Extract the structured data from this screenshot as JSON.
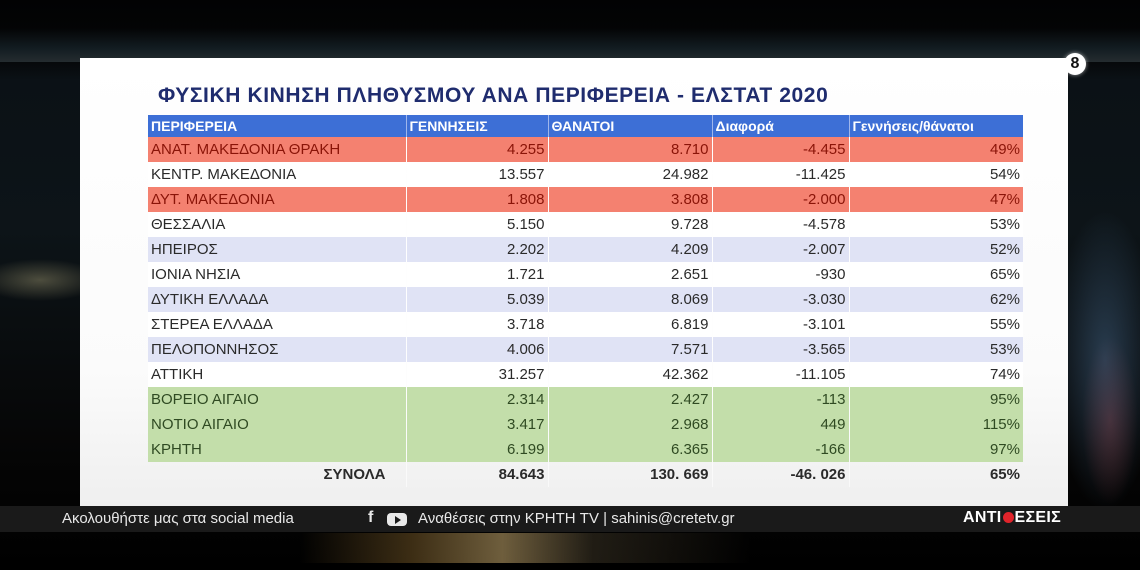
{
  "broadcast": {
    "channel_logo": "8",
    "ticker": {
      "follow_text": "Ακολουθήστε μας στα social media",
      "social_icons": [
        "facebook-icon",
        "youtube-icon"
      ],
      "facebook_glyph": "f",
      "info_text": "Αναθέσεις στην ΚΡΗΤΗ TV | sahinis@cretetv.gr",
      "show_name_part1": "ΑΝΤΙ",
      "show_name_part2": "ΕΣΕΙΣ"
    }
  },
  "slide": {
    "title": "ΦΥΣΙΚΗ ΚΙΝΗΣΗ ΠΛΗΘΥΣΜΟΥ ΑΝΑ ΠΕΡΙΦΕΡΕΙΑ - ΕΛΣΤΑΤ 2020",
    "colors": {
      "header": "#3d6fd6",
      "red_rows": "#f48170",
      "lavender_rows": "#e0e3f5",
      "green_rows": "#c3deaa",
      "title": "#1f2c6e"
    },
    "table": {
      "headers": [
        "ΠΕΡΙΦΕΡΕΙΑ",
        "ΓΕΝΝΗΣΕΙΣ",
        "ΘΑΝΑΤΟΙ",
        "Διαφορά",
        "Γεννήσεις/θάνατοι"
      ],
      "rows": [
        {
          "region": "ΑΝΑΤ. ΜΑΚΕΔΟΝΙΑ ΘΡΑΚΗ",
          "births": "4.255",
          "deaths": "8.710",
          "diff": "-4.455",
          "ratio": "49%",
          "band": "red"
        },
        {
          "region": "ΚΕΝΤΡ. ΜΑΚΕΔΟΝΙΑ",
          "births": "13.557",
          "deaths": "24.982",
          "diff": "-11.425",
          "ratio": "54%",
          "band": "white"
        },
        {
          "region": "ΔΥΤ. ΜΑΚΕΔΟΝΙΑ",
          "births": "1.808",
          "deaths": "3.808",
          "diff": "-2.000",
          "ratio": "47%",
          "band": "red"
        },
        {
          "region": "ΘΕΣΣΑΛΙΑ",
          "births": "5.150",
          "deaths": "9.728",
          "diff": "-4.578",
          "ratio": "53%",
          "band": "white"
        },
        {
          "region": "ΗΠΕΙΡΟΣ",
          "births": "2.202",
          "deaths": "4.209",
          "diff": "-2.007",
          "ratio": "52%",
          "band": "lav"
        },
        {
          "region": "ΙΟΝΙΑ ΝΗΣΙΑ",
          "births": "1.721",
          "deaths": "2.651",
          "diff": "-930",
          "ratio": "65%",
          "band": "white"
        },
        {
          "region": "ΔΥΤΙΚΗ ΕΛΛΑΔΑ",
          "births": "5.039",
          "deaths": "8.069",
          "diff": "-3.030",
          "ratio": "62%",
          "band": "lav"
        },
        {
          "region": "ΣΤΕΡΕΑ ΕΛΛΑΔΑ",
          "births": "3.718",
          "deaths": "6.819",
          "diff": "-3.101",
          "ratio": "55%",
          "band": "white"
        },
        {
          "region": "ΠΕΛΟΠΟΝΝΗΣΟΣ",
          "births": "4.006",
          "deaths": "7.571",
          "diff": "-3.565",
          "ratio": "53%",
          "band": "lav"
        },
        {
          "region": "ΑΤΤΙΚΗ",
          "births": "31.257",
          "deaths": "42.362",
          "diff": "-11.105",
          "ratio": "74%",
          "band": "white"
        },
        {
          "region": "ΒΟΡΕΙΟ ΑΙΓΑΙΟ",
          "births": "2.314",
          "deaths": "2.427",
          "diff": "-113",
          "ratio": "95%",
          "band": "green"
        },
        {
          "region": "ΝΟΤΙΟ ΑΙΓΑΙΟ",
          "births": "3.417",
          "deaths": "2.968",
          "diff": "449",
          "ratio": "115%",
          "band": "green"
        },
        {
          "region": "ΚΡΗΤΗ",
          "births": "6.199",
          "deaths": "6.365",
          "diff": "-166",
          "ratio": "97%",
          "band": "green"
        }
      ],
      "totals": {
        "label": "ΣΥΝΟΛΑ",
        "births": "84.643",
        "deaths": "130. 669",
        "diff": "-46. 026",
        "ratio": "65%"
      }
    }
  }
}
